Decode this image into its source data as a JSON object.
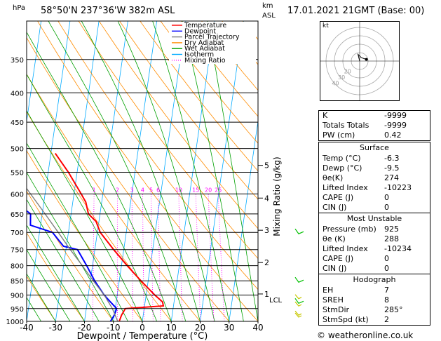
{
  "header": {
    "hpa_label": "hPa",
    "location": "58°50'N  237°36'W  382m  ASL",
    "km_label": "km",
    "asl_label": "ASL",
    "datetime": "17.01.2021  21GMT  (Base: 00)"
  },
  "chart_data": {
    "type": "line",
    "title": "",
    "xlabel": "Dewpoint / Temperature (°C)",
    "ylabel": "hPa",
    "xlim": [
      -40,
      40
    ],
    "ylim": [
      1000,
      300
    ],
    "y_scale": "log",
    "x_ticks": [
      -40,
      -30,
      -20,
      -10,
      0,
      10,
      20,
      30,
      40
    ],
    "pressure_ticks": [
      350,
      400,
      450,
      500,
      550,
      600,
      650,
      700,
      750,
      800,
      850,
      900,
      950,
      1000
    ],
    "km_ticks": [
      {
        "label": "1",
        "p": 896
      },
      {
        "label": "2",
        "p": 790
      },
      {
        "label": "3",
        "p": 694
      },
      {
        "label": "4",
        "p": 610
      },
      {
        "label": "5",
        "p": 535
      }
    ],
    "lcl": {
      "label": "LCL",
      "p": 916
    },
    "mixing_ratio_label": "Mixing Ratio (g/kg)",
    "mixing_ratio_values": [
      "1",
      "2",
      "3",
      "4",
      "5",
      "6",
      "10",
      "15",
      "20",
      "25"
    ],
    "legend": [
      "Temperature",
      "Dewpoint",
      "Parcel Trajectory",
      "Dry Adiabat",
      "Wet Adiabat",
      "Isotherm",
      "Mixing Ratio"
    ],
    "legend_colors": [
      "#ff0000",
      "#0000ff",
      "#808080",
      "#ff8c00",
      "#00a000",
      "#00aaff",
      "#ff00ff"
    ],
    "legend_styles": [
      "solid",
      "solid",
      "solid",
      "solid",
      "solid",
      "solid",
      "dotted"
    ],
    "legend_position": "top-right",
    "series": [
      {
        "name": "Temperature",
        "color": "#ff0000",
        "points": [
          {
            "p": 1000,
            "t": -8.0
          },
          {
            "p": 975,
            "t": -7.5
          },
          {
            "p": 950,
            "t": -6.5
          },
          {
            "p": 940,
            "t": 6.5
          },
          {
            "p": 925,
            "t": 6.0
          },
          {
            "p": 900,
            "t": 3.0
          },
          {
            "p": 850,
            "t": -2.5
          },
          {
            "p": 800,
            "t": -8.0
          },
          {
            "p": 750,
            "t": -13.5
          },
          {
            "p": 700,
            "t": -19.0
          },
          {
            "p": 670,
            "t": -21.0
          },
          {
            "p": 650,
            "t": -24.0
          },
          {
            "p": 620,
            "t": -25.5
          },
          {
            "p": 600,
            "t": -27.5
          },
          {
            "p": 550,
            "t": -33.0
          },
          {
            "p": 510,
            "t": -38.5
          }
        ]
      },
      {
        "name": "Dewpoint",
        "color": "#0000ff",
        "points": [
          {
            "p": 1000,
            "t": -11.0
          },
          {
            "p": 975,
            "t": -10.0
          },
          {
            "p": 950,
            "t": -9.5
          },
          {
            "p": 925,
            "t": -12.0
          },
          {
            "p": 900,
            "t": -14.5
          },
          {
            "p": 850,
            "t": -18.5
          },
          {
            "p": 800,
            "t": -22.0
          },
          {
            "p": 750,
            "t": -26.0
          },
          {
            "p": 740,
            "t": -31.0
          },
          {
            "p": 700,
            "t": -35.5
          },
          {
            "p": 680,
            "t": -43.5
          },
          {
            "p": 650,
            "t": -44.0
          },
          {
            "p": 620,
            "t": -50.0
          },
          {
            "p": 600,
            "t": -60.0
          },
          {
            "p": 550,
            "t": -55.0
          },
          {
            "p": 530,
            "t": -56.0
          },
          {
            "p": 520,
            "t": -49.0
          },
          {
            "p": 510,
            "t": -52.0
          }
        ]
      },
      {
        "name": "Parcel Trajectory",
        "color": "#808080",
        "points": [
          {
            "p": 1000,
            "t": -8.5
          },
          {
            "p": 950,
            "t": -11.0
          },
          {
            "p": 900,
            "t": -14.5
          },
          {
            "p": 850,
            "t": -19.0
          },
          {
            "p": 800,
            "t": -23.5
          },
          {
            "p": 750,
            "t": -28.5
          },
          {
            "p": 700,
            "t": -33.5
          },
          {
            "p": 650,
            "t": -39.0
          },
          {
            "p": 600,
            "t": -45.0
          },
          {
            "p": 550,
            "t": -51.5
          },
          {
            "p": 500,
            "t": -58.5
          },
          {
            "p": 450,
            "t": -66.0
          },
          {
            "p": 400,
            "t": -74.0
          },
          {
            "p": 350,
            "t": -83.0
          },
          {
            "p": 300,
            "t": -92.0
          }
        ]
      }
    ],
    "wind_barbs_p": [
      925,
      850,
      700
    ]
  },
  "hodograph": {
    "unit_label": "kt",
    "ring_labels": [
      "10",
      "20",
      "30",
      "40"
    ],
    "trace": [
      [
        0,
        0
      ],
      [
        -1,
        4
      ],
      [
        1,
        2
      ],
      [
        4,
        1
      ]
    ]
  },
  "indices": [
    {
      "label": "K",
      "value": "-9999"
    },
    {
      "label": "Totals Totals",
      "value": "-9999"
    },
    {
      "label": "PW (cm)",
      "value": "0.42"
    }
  ],
  "surface": {
    "title": "Surface",
    "rows": [
      {
        "label": "Temp (°C)",
        "value": "-6.3"
      },
      {
        "label": "Dewp (°C)",
        "value": "-9.5"
      },
      {
        "label": "θe(K)",
        "value": "274"
      },
      {
        "label": "Lifted Index",
        "value": "-10223"
      },
      {
        "label": "CAPE (J)",
        "value": "0"
      },
      {
        "label": "CIN (J)",
        "value": "0"
      }
    ]
  },
  "most_unstable": {
    "title": "Most Unstable",
    "rows": [
      {
        "label": "Pressure (mb)",
        "value": "925"
      },
      {
        "label": "θe (K)",
        "value": "288"
      },
      {
        "label": "Lifted Index",
        "value": "-10234"
      },
      {
        "label": "CAPE (J)",
        "value": "0"
      },
      {
        "label": "CIN (J)",
        "value": "0"
      }
    ]
  },
  "hodograph_table": {
    "title": "Hodograph",
    "rows": [
      {
        "label": "EH",
        "value": "7"
      },
      {
        "label": "SREH",
        "value": "8"
      },
      {
        "label": "StmDir",
        "value": "285°"
      },
      {
        "label": "StmSpd (kt)",
        "value": "2"
      }
    ]
  },
  "footer": {
    "copyright": "© weatheronline.co.uk"
  }
}
